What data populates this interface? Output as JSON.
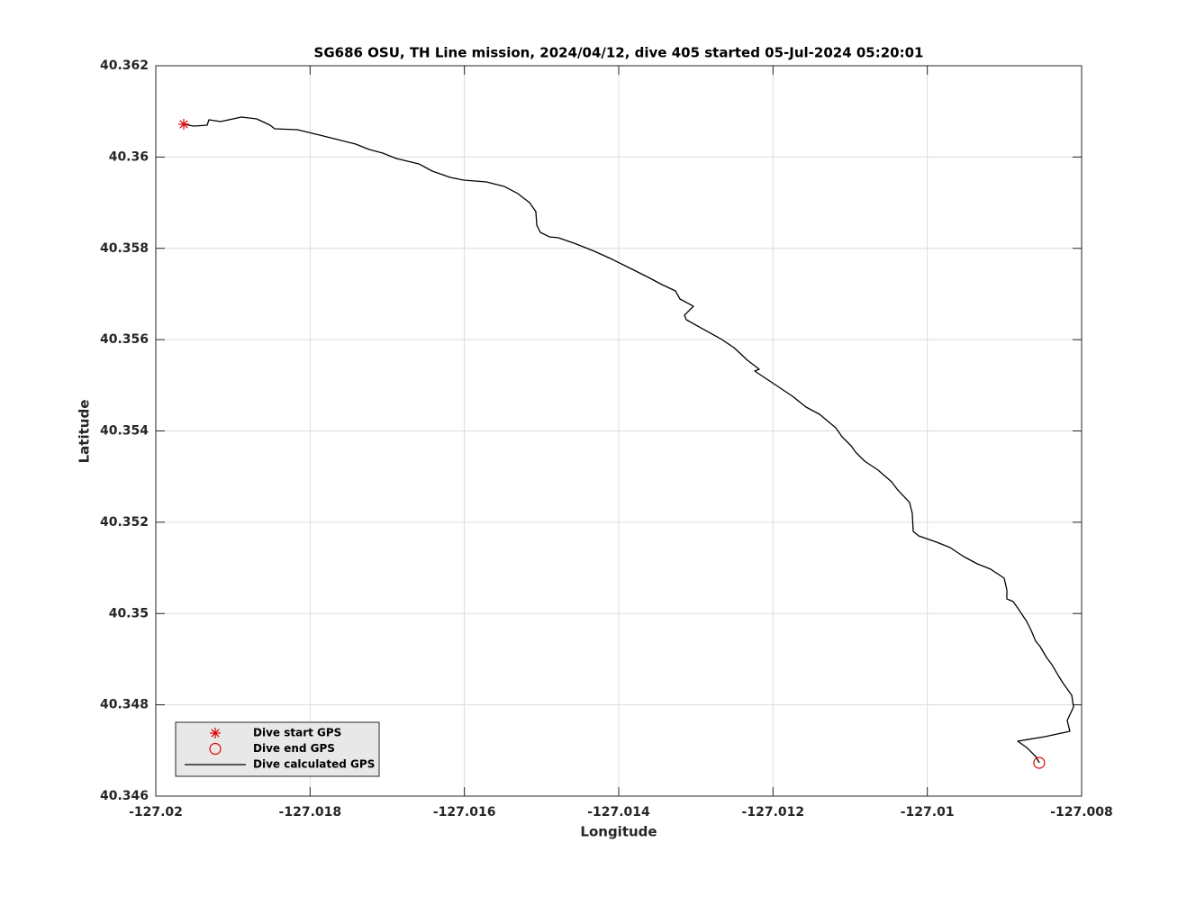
{
  "chart_data": {
    "type": "line",
    "title": "SG686 OSU, TH Line mission, 2024/04/12, dive 405 started 05-Jul-2024 05:20:01",
    "xlabel": "Longitude",
    "ylabel": "Latitude",
    "xlim": [
      -127.02,
      -127.008
    ],
    "ylim": [
      40.346,
      40.362
    ],
    "xticks": [
      -127.02,
      -127.018,
      -127.016,
      -127.014,
      -127.012,
      -127.01,
      -127.008
    ],
    "yticks": [
      40.346,
      40.348,
      40.35,
      40.352,
      40.354,
      40.356,
      40.358,
      40.36,
      40.362
    ],
    "grid": true,
    "legend": "southwest",
    "series": [
      {
        "name": "Dive start GPS",
        "color": "#e00000",
        "marker": "asterisk",
        "x": [
          -127.019638
        ],
        "values": [
          40.360718
        ]
      },
      {
        "name": "Dive end GPS",
        "color": "#e00000",
        "marker": "circle",
        "x": [
          -127.00855
        ],
        "values": [
          40.34673
        ]
      },
      {
        "name": "Dive calculated GPS",
        "color": "#000000",
        "marker": "none",
        "x": [
          -127.019638,
          -127.01951,
          -127.019335,
          -127.019311,
          -127.01916,
          -127.018891,
          -127.018693,
          -127.018518,
          -127.018459,
          -127.018167,
          -127.017875,
          -127.017642,
          -127.017409,
          -127.017233,
          -127.017058,
          -127.016883,
          -127.016591,
          -127.016416,
          -127.016183,
          -127.016008,
          -127.015716,
          -127.015482,
          -127.015307,
          -127.015156,
          -127.015074,
          -127.015062,
          -127.015016,
          -127.014899,
          -127.014782,
          -127.014549,
          -127.014315,
          -127.014082,
          -127.013848,
          -127.013615,
          -127.01344,
          -127.013265,
          -127.013206,
          -127.013031,
          -127.013148,
          -127.013124,
          -127.012914,
          -127.012681,
          -127.012506,
          -127.012331,
          -127.012179,
          -127.012237,
          -127.012097,
          -127.011922,
          -127.011747,
          -127.011572,
          -127.011397,
          -127.011187,
          -127.011105,
          -127.010988,
          -127.01093,
          -127.010813,
          -127.010638,
          -127.010463,
          -127.010393,
          -127.01023,
          -127.010195,
          -127.010183,
          -127.010113,
          -127.009879,
          -127.009704,
          -127.009529,
          -127.009354,
          -127.009179,
          -127.009004,
          -127.008969,
          -127.008969,
          -127.008887,
          -127.008829,
          -127.008712,
          -127.008654,
          -127.008595,
          -127.008537,
          -127.008455,
          -127.008385,
          -127.008303,
          -127.008245,
          -127.008187,
          -127.008128,
          -127.008105,
          -127.008187,
          -127.008152,
          -127.008478,
          -127.008829,
          -127.008712,
          -127.008595,
          -127.008548
        ],
        "values": [
          40.360718,
          40.360678,
          40.360698,
          40.360816,
          40.360777,
          40.360875,
          40.360836,
          40.360698,
          40.360619,
          40.360599,
          40.360481,
          40.360382,
          40.360284,
          40.360165,
          40.360086,
          40.359968,
          40.35985,
          40.359692,
          40.359554,
          40.359494,
          40.359455,
          40.359356,
          40.359199,
          40.359001,
          40.358804,
          40.358508,
          40.35835,
          40.358252,
          40.358232,
          40.358094,
          40.357936,
          40.357758,
          40.357561,
          40.357364,
          40.357206,
          40.357068,
          40.35689,
          40.356732,
          40.356535,
          40.356437,
          40.356239,
          40.356022,
          40.355825,
          40.355549,
          40.355351,
          40.355312,
          40.355154,
          40.354957,
          40.35476,
          40.354523,
          40.354365,
          40.354069,
          40.353872,
          40.353674,
          40.353536,
          40.353339,
          40.353142,
          40.352885,
          40.352727,
          40.352432,
          40.352195,
          40.3518,
          40.351702,
          40.351563,
          40.351445,
          40.351248,
          40.35109,
          40.350972,
          40.350774,
          40.350518,
          40.350321,
          40.350261,
          40.350123,
          40.349827,
          40.34963,
          40.349393,
          40.349275,
          40.349038,
          40.34888,
          40.348644,
          40.348486,
          40.348348,
          40.34821,
          40.347953,
          40.347657,
          40.347421,
          40.347302,
          40.347203,
          40.347065,
          40.346868,
          40.34673
        ]
      }
    ]
  }
}
